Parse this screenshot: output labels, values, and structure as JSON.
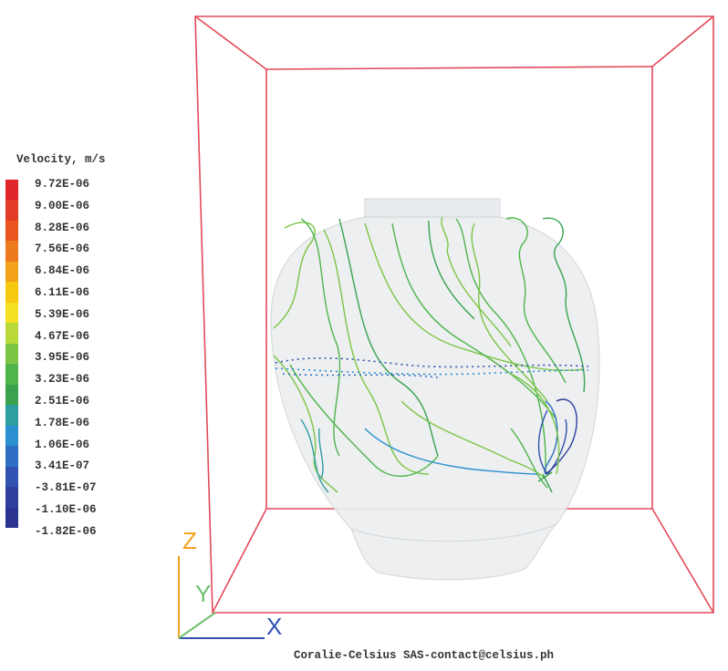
{
  "legend": {
    "title": "Velocity, m/s",
    "labels": [
      "9.72E-06",
      "9.00E-06",
      "8.28E-06",
      "7.56E-06",
      "6.84E-06",
      "6.11E-06",
      "5.39E-06",
      "4.67E-06",
      "3.95E-06",
      "3.23E-06",
      "2.51E-06",
      "1.78E-06",
      "1.06E-06",
      "3.41E-07",
      "-3.81E-07",
      "-1.10E-06",
      "-1.82E-06"
    ],
    "colors": [
      "#e0252b",
      "#e23b26",
      "#e8551f",
      "#ed7a1c",
      "#f2a21a",
      "#f6c80f",
      "#f3e020",
      "#b9d83a",
      "#7cc544",
      "#4fb54b",
      "#3aa24f",
      "#2f9ea0",
      "#2b8fd0",
      "#2e6fc4",
      "#3152b0",
      "#2f3f9d",
      "#2b3490"
    ]
  },
  "axes": {
    "x": "X",
    "y": "Y",
    "z": "Z"
  },
  "credit": "Coralie-Celsius SAS-contact@celsius.ph"
}
